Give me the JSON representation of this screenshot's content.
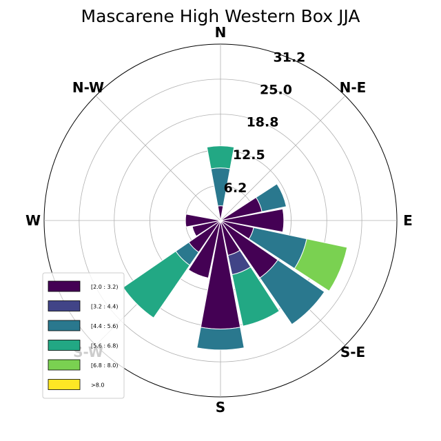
{
  "chart_data": {
    "type": "windrose",
    "title": "Mascarene High Western Box JJA",
    "direction_labels": [
      "N",
      "N-E",
      "E",
      "S-E",
      "S",
      "S-W",
      "W",
      "N-W"
    ],
    "radial_ticks": [
      6.2,
      12.5,
      18.8,
      25.0,
      31.2
    ],
    "radial_tick_labels": [
      "6.2",
      "12.5",
      "18.8",
      "25.0",
      "31.2"
    ],
    "rmax": 31.2,
    "grid": true,
    "legend_placement": "lower-left",
    "bins": [
      {
        "label": "[2.0 : 3.2)",
        "color": "#440154"
      },
      {
        "label": "[3.2 : 4.4)",
        "color": "#414487"
      },
      {
        "label": "[4.4 : 5.6)",
        "color": "#2a788e"
      },
      {
        "label": "[5.6 : 6.8)",
        "color": "#22a884"
      },
      {
        "label": "[6.8 : 8.0)",
        "color": "#7ad151"
      },
      {
        "label": ">8.0",
        "color": "#fde725"
      }
    ],
    "directions_deg": [
      0,
      22.5,
      45,
      67.5,
      90,
      112.5,
      135,
      157.5,
      180,
      202.5,
      225,
      247.5,
      270,
      292.5
    ],
    "sectors": [
      {
        "direction": 0,
        "values": [
          2.6,
          0,
          6.7,
          3.9,
          0,
          0
        ]
      },
      {
        "direction": 22.5,
        "values": [
          0,
          0,
          0,
          0,
          0,
          0
        ]
      },
      {
        "direction": 45,
        "values": [
          0,
          0,
          0,
          0,
          0,
          0
        ]
      },
      {
        "direction": 67.5,
        "values": [
          7.5,
          0,
          4.4,
          0,
          0,
          0
        ]
      },
      {
        "direction": 90,
        "values": [
          11.2,
          0,
          0,
          0,
          0,
          0
        ]
      },
      {
        "direction": 112.5,
        "values": [
          6.0,
          0,
          9.6,
          0,
          7.3,
          0
        ]
      },
      {
        "direction": 135,
        "values": [
          12.3,
          0,
          10.0,
          0,
          0,
          0
        ]
      },
      {
        "direction": 157.5,
        "values": [
          6.3,
          3.5,
          0,
          9.3,
          0,
          0
        ]
      },
      {
        "direction": 180,
        "values": [
          19.2,
          0,
          3.7,
          0,
          0,
          0
        ]
      },
      {
        "direction": 202.5,
        "values": [
          10.4,
          0,
          0,
          0,
          0,
          0
        ]
      },
      {
        "direction": 225,
        "values": [
          6.8,
          0,
          2.8,
          11.3,
          0,
          0
        ]
      },
      {
        "direction": 247.5,
        "values": [
          5.1,
          0,
          0,
          0,
          0,
          0
        ]
      },
      {
        "direction": 270,
        "values": [
          6.2,
          0,
          0,
          0,
          0,
          0
        ]
      },
      {
        "direction": 292.5,
        "values": [
          0,
          0,
          0,
          0,
          0,
          0
        ]
      }
    ]
  }
}
